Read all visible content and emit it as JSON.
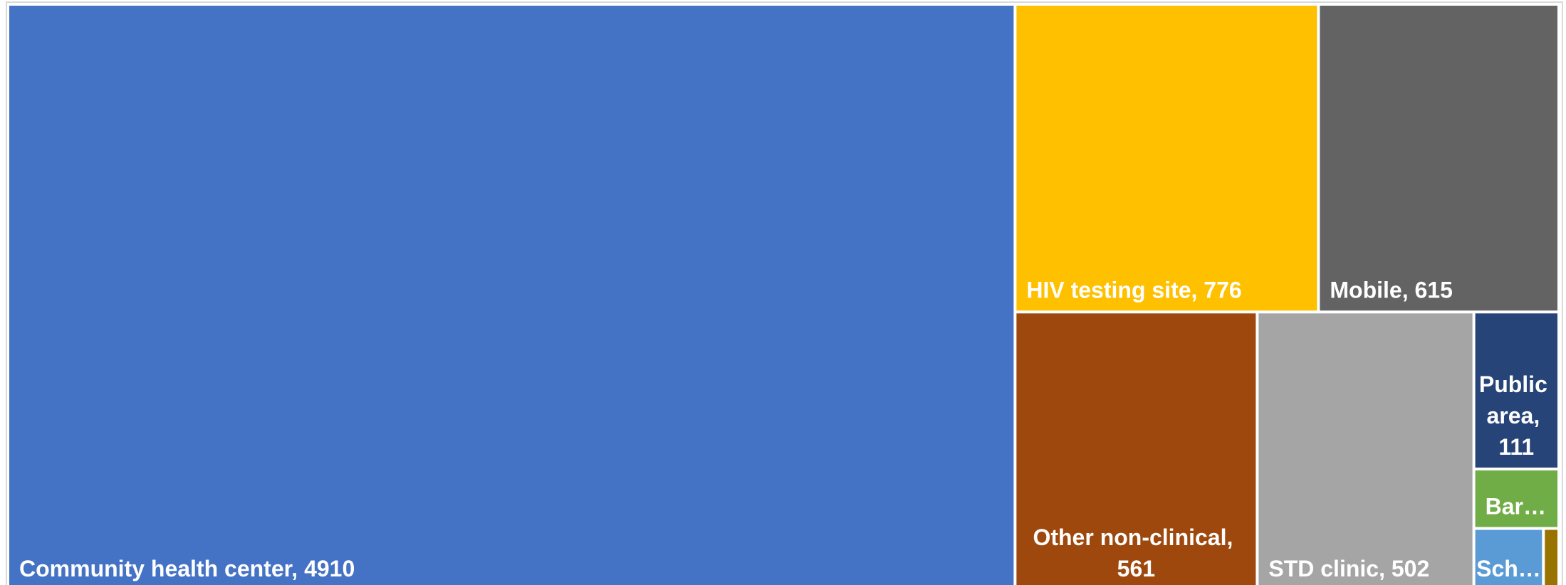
{
  "chart_data": {
    "type": "treemap",
    "labels": [
      "Community health center, 4910",
      "HIV testing site, 776",
      "Mobile, 615",
      "Other non-clinical, 561",
      "STD clinic, 502",
      "Public area, 111",
      "Bar…",
      "Sch…",
      null
    ],
    "values": [
      4910,
      776,
      615,
      561,
      502,
      111,
      42,
      36,
      8
    ],
    "colors": [
      "#4472c4",
      "#ffc000",
      "#636363",
      "#9e480e",
      "#a5a5a5",
      "#264478",
      "#70ad47",
      "#5b9bd5",
      "#997300"
    ]
  }
}
